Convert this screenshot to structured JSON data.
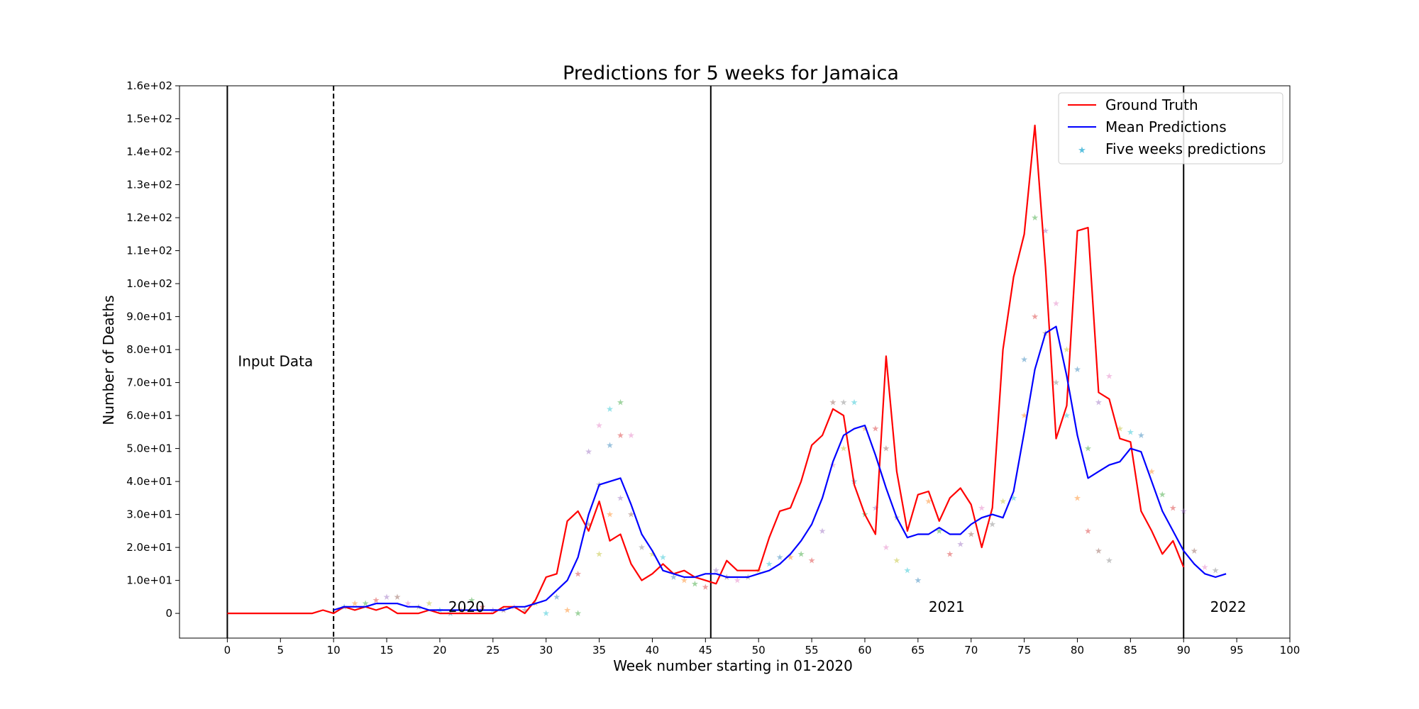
{
  "chart_data": {
    "type": "line",
    "title": "Predictions for 5 weeks for Jamaica",
    "xlabel": "Week number starting in 01-2020",
    "ylabel": "Number of Deaths",
    "xlim": [
      -4.5,
      100
    ],
    "ylim": [
      -7.5,
      160
    ],
    "xticks": [
      0,
      5,
      10,
      15,
      20,
      25,
      30,
      35,
      40,
      45,
      50,
      55,
      60,
      65,
      70,
      75,
      80,
      85,
      90,
      95,
      100
    ],
    "xtick_labels": [
      "0",
      "5",
      "10",
      "15",
      "20",
      "25",
      "30",
      "35",
      "40",
      "45",
      "50",
      "55",
      "60",
      "65",
      "70",
      "75",
      "80",
      "85",
      "90",
      "95",
      "100"
    ],
    "yticks": [
      0,
      10,
      20,
      30,
      40,
      50,
      60,
      70,
      80,
      90,
      100,
      110,
      120,
      130,
      140,
      150,
      160
    ],
    "ytick_labels": [
      "0",
      "1.0e+01",
      "2.0e+01",
      "3.0e+01",
      "4.0e+01",
      "5.0e+01",
      "6.0e+01",
      "7.0e+01",
      "8.0e+01",
      "9.0e+01",
      "1.0e+02",
      "1.1e+02",
      "1.2e+02",
      "1.3e+02",
      "1.4e+02",
      "1.5e+02",
      "1.6e+02"
    ],
    "grid": false,
    "legend_position": "top-right",
    "series": [
      {
        "name": "Ground Truth",
        "color": "#ff0000",
        "style": "line",
        "x": [
          0,
          1,
          2,
          3,
          4,
          5,
          6,
          7,
          8,
          9,
          10,
          11,
          12,
          13,
          14,
          15,
          16,
          17,
          18,
          19,
          20,
          21,
          22,
          23,
          24,
          25,
          26,
          27,
          28,
          29,
          30,
          31,
          32,
          33,
          34,
          35,
          36,
          37,
          38,
          39,
          40,
          41,
          42,
          43,
          44,
          45,
          46,
          47,
          48,
          49,
          50,
          51,
          52,
          53,
          54,
          55,
          56,
          57,
          58,
          59,
          60,
          61,
          62,
          63,
          64,
          65,
          66,
          67,
          68,
          69,
          70,
          71,
          72,
          73,
          74,
          75,
          76,
          77,
          78,
          79,
          80,
          81,
          82,
          83,
          84,
          85,
          86,
          87,
          88,
          89,
          90
        ],
        "y": [
          0,
          0,
          0,
          0,
          0,
          0,
          0,
          0,
          0,
          1,
          0,
          2,
          1,
          2,
          1,
          2,
          0,
          0,
          0,
          1,
          0,
          0,
          0,
          0,
          0,
          0,
          2,
          2,
          0,
          4,
          11,
          12,
          28,
          31,
          25,
          34,
          22,
          24,
          15,
          10,
          12,
          15,
          12,
          13,
          11,
          10,
          9,
          16,
          13,
          13,
          13,
          23,
          31,
          32,
          40,
          51,
          54,
          62,
          60,
          39,
          30,
          24,
          78,
          43,
          25,
          36,
          37,
          28,
          35,
          38,
          33,
          20,
          32,
          80,
          102,
          115,
          148,
          105,
          53,
          63,
          116,
          117,
          67,
          65,
          53,
          52,
          31,
          25,
          18,
          22,
          14
        ]
      },
      {
        "name": "Mean Predictions",
        "color": "#0000ff",
        "style": "line",
        "x": [
          10,
          11,
          12,
          13,
          14,
          15,
          16,
          17,
          18,
          19,
          20,
          21,
          22,
          23,
          24,
          25,
          26,
          27,
          28,
          29,
          30,
          31,
          32,
          33,
          34,
          35,
          36,
          37,
          38,
          39,
          40,
          41,
          42,
          43,
          44,
          45,
          46,
          47,
          48,
          49,
          50,
          51,
          52,
          53,
          54,
          55,
          56,
          57,
          58,
          59,
          60,
          61,
          62,
          63,
          64,
          65,
          66,
          67,
          68,
          69,
          70,
          71,
          72,
          73,
          74,
          75,
          76,
          77,
          78,
          79,
          80,
          81,
          82,
          83,
          84,
          85,
          86,
          87,
          88,
          89,
          90,
          91,
          92,
          93,
          94
        ],
        "y": [
          1,
          2,
          2,
          2,
          3,
          3,
          3,
          2,
          2,
          1,
          1,
          1,
          1,
          1,
          1,
          1,
          1,
          2,
          2,
          3,
          4,
          7,
          10,
          17,
          30,
          39,
          40,
          41,
          33,
          24,
          19,
          13,
          12,
          11,
          11,
          12,
          12,
          11,
          11,
          11,
          12,
          13,
          15,
          18,
          22,
          27,
          35,
          46,
          54,
          56,
          57,
          48,
          38,
          29,
          23,
          24,
          24,
          26,
          24,
          24,
          27,
          29,
          30,
          29,
          37,
          55,
          74,
          85,
          87,
          72,
          54,
          41,
          43,
          45,
          46,
          50,
          49,
          40,
          31,
          25,
          19,
          15,
          12,
          11,
          12
        ]
      },
      {
        "name": "Five weeks predictions",
        "color": "#5bc0de",
        "style": "markers",
        "x": [
          11,
          12,
          13,
          14,
          15,
          16,
          17,
          18,
          19,
          20,
          21,
          22,
          23,
          24,
          25,
          26,
          27,
          28,
          29,
          30,
          31,
          32,
          33,
          33,
          34,
          34,
          35,
          35,
          35,
          36,
          36,
          36,
          37,
          37,
          37,
          38,
          38,
          39,
          40,
          41,
          42,
          43,
          44,
          45,
          46,
          47,
          48,
          49,
          50,
          51,
          52,
          53,
          54,
          55,
          56,
          57,
          57,
          58,
          58,
          59,
          59,
          60,
          60,
          61,
          61,
          62,
          62,
          63,
          63,
          64,
          65,
          66,
          67,
          68,
          69,
          70,
          71,
          72,
          73,
          74,
          75,
          75,
          76,
          76,
          77,
          77,
          78,
          78,
          79,
          79,
          80,
          80,
          81,
          81,
          82,
          82,
          83,
          83,
          84,
          85,
          86,
          87,
          88,
          89,
          90,
          91,
          92,
          93
        ],
        "y": [
          2,
          3,
          3,
          4,
          5,
          5,
          3,
          2,
          3,
          1,
          0,
          1,
          4,
          2,
          1,
          1,
          2,
          1,
          3,
          0,
          5,
          1,
          0,
          12,
          49,
          27,
          57,
          39,
          18,
          62,
          51,
          30,
          64,
          54,
          35,
          30,
          54,
          20,
          18,
          17,
          11,
          10,
          9,
          8,
          13,
          11,
          10,
          11,
          13,
          15,
          17,
          17,
          18,
          16,
          25,
          64,
          45,
          64,
          50,
          64,
          40,
          56,
          30,
          56,
          32,
          50,
          20,
          29,
          16,
          13,
          10,
          34,
          25,
          18,
          21,
          24,
          32,
          27,
          34,
          35,
          77,
          60,
          120,
          90,
          116,
          85,
          94,
          70,
          80,
          60,
          74,
          35,
          50,
          25,
          64,
          19,
          72,
          16,
          56,
          55,
          54,
          43,
          36,
          32,
          31,
          19,
          14,
          13
        ]
      }
    ],
    "vlines": [
      {
        "x": 0,
        "style": "solid"
      },
      {
        "x": 10,
        "style": "dashed"
      },
      {
        "x": 45.5,
        "style": "solid"
      },
      {
        "x": 90,
        "style": "solid"
      }
    ],
    "annotations": [
      {
        "text": "Input Data",
        "x": 1,
        "y": 75
      },
      {
        "text": "2020",
        "x": 20.8,
        "y": 0.5
      },
      {
        "text": "2021",
        "x": 66,
        "y": 0.5
      },
      {
        "text": "2022",
        "x": 92.5,
        "y": 0.5
      }
    ]
  }
}
